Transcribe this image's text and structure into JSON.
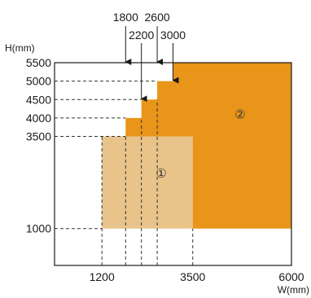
{
  "chart_data": {
    "type": "area",
    "xlabel": "W(mm)",
    "ylabel": "H(mm)",
    "xlim": [
      0,
      6000
    ],
    "ylim": [
      0,
      5500
    ],
    "grid": false,
    "x_axis_ticks": [
      1200,
      3500,
      6000
    ],
    "top_ticks": [
      1800,
      2200,
      2600,
      3000
    ],
    "y_ticks": [
      1000,
      3500,
      4000,
      4500,
      5000,
      5500
    ],
    "regions": [
      {
        "label": "①",
        "color": "#e8c48a",
        "polygon": [
          [
            1200,
            1000
          ],
          [
            3500,
            1000
          ],
          [
            3500,
            3500
          ],
          [
            1200,
            3500
          ]
        ]
      },
      {
        "label": "②",
        "color": "#e8951a",
        "polygon": [
          [
            3500,
            1000
          ],
          [
            6000,
            1000
          ],
          [
            6000,
            5500
          ],
          [
            3000,
            5500
          ],
          [
            3000,
            5000
          ],
          [
            2600,
            5000
          ],
          [
            2600,
            4500
          ],
          [
            2200,
            4500
          ],
          [
            2200,
            4000
          ],
          [
            1800,
            4000
          ],
          [
            1800,
            3500
          ],
          [
            3500,
            3500
          ]
        ]
      }
    ],
    "region_label_positions": [
      [
        2700,
        2500
      ],
      [
        4700,
        4100
      ]
    ],
    "guides": [
      {
        "from": [
          0,
          1000
        ],
        "to": [
          1200,
          1000
        ]
      },
      {
        "from": [
          0,
          3500
        ],
        "to": [
          1800,
          3500
        ]
      },
      {
        "from": [
          0,
          4000
        ],
        "to": [
          1800,
          4000
        ]
      },
      {
        "from": [
          0,
          4500
        ],
        "to": [
          2200,
          4500
        ]
      },
      {
        "from": [
          0,
          5000
        ],
        "to": [
          2600,
          5000
        ]
      },
      {
        "from": [
          1200,
          0
        ],
        "to": [
          1200,
          3500
        ]
      },
      {
        "from": [
          1800,
          0
        ],
        "to": [
          1800,
          3500
        ]
      },
      {
        "from": [
          2200,
          0
        ],
        "to": [
          2200,
          4000
        ]
      },
      {
        "from": [
          2600,
          0
        ],
        "to": [
          2600,
          4500
        ]
      },
      {
        "from": [
          3500,
          0
        ],
        "to": [
          3500,
          1000
        ]
      }
    ],
    "top_arrows": [
      {
        "x": 1800,
        "to_y": 5500
      },
      {
        "x": 2600,
        "to_y": 5500
      },
      {
        "x": 2200,
        "to_y": 4500
      },
      {
        "x": 3000,
        "to_y": 5000
      }
    ]
  }
}
